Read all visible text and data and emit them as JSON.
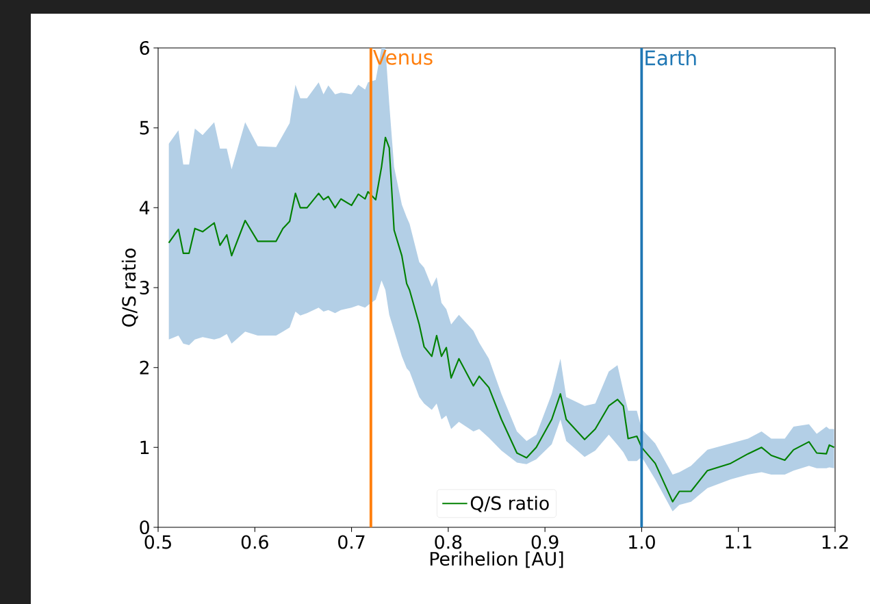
{
  "chart_data": {
    "type": "line",
    "xlabel": "Perihelion [AU]",
    "ylabel": "Q/S ratio",
    "xlim": [
      0.5,
      1.2
    ],
    "ylim": [
      0,
      6
    ],
    "xticks": [
      0.5,
      0.6,
      0.7,
      0.8,
      0.9,
      {
        "value": 1.0,
        "label": "1.0"
      },
      1.1,
      1.2
    ],
    "yticks": [
      0,
      1,
      2,
      3,
      4,
      5,
      6
    ],
    "legend": "bottom",
    "marker": "none",
    "line_style": "solid",
    "x": [
      0.511,
      0.521,
      0.526,
      0.532,
      0.538,
      0.546,
      0.558,
      0.564,
      0.571,
      0.576,
      0.59,
      0.603,
      0.622,
      0.629,
      0.636,
      0.642,
      0.647,
      0.654,
      0.666,
      0.671,
      0.676,
      0.683,
      0.689,
      0.7,
      0.707,
      0.714,
      0.717,
      0.725,
      0.731,
      0.735,
      0.739,
      0.744,
      0.752,
      0.757,
      0.76,
      0.77,
      0.775,
      0.783,
      0.788,
      0.793,
      0.798,
      0.803,
      0.811,
      0.826,
      0.832,
      0.842,
      0.855,
      0.871,
      0.881,
      0.891,
      0.907,
      0.916,
      0.922,
      0.941,
      0.952,
      0.966,
      0.975,
      0.981,
      0.986,
      0.995,
      1.0,
      1.014,
      1.032,
      1.039,
      1.051,
      1.068,
      1.092,
      1.11,
      1.124,
      1.134,
      1.148,
      1.157,
      1.173,
      1.181,
      1.191,
      1.194,
      1.199
    ],
    "series": [
      {
        "name": "Q/S ratio",
        "color": "#008000",
        "values": [
          3.56,
          3.73,
          3.43,
          3.43,
          3.74,
          3.7,
          3.81,
          3.53,
          3.66,
          3.4,
          3.84,
          3.58,
          3.58,
          3.74,
          3.83,
          4.18,
          4.0,
          4.0,
          4.18,
          4.1,
          4.14,
          4.0,
          4.11,
          4.03,
          4.17,
          4.11,
          4.2,
          4.1,
          4.51,
          4.88,
          4.75,
          3.72,
          3.4,
          3.05,
          2.97,
          2.54,
          2.26,
          2.14,
          2.4,
          2.14,
          2.25,
          1.87,
          2.11,
          1.77,
          1.89,
          1.75,
          1.35,
          0.93,
          0.87,
          1.0,
          1.35,
          1.67,
          1.35,
          1.1,
          1.23,
          1.52,
          1.6,
          1.52,
          1.11,
          1.14,
          1.0,
          0.8,
          0.32,
          0.45,
          0.45,
          0.71,
          0.8,
          0.92,
          1.0,
          0.9,
          0.84,
          0.97,
          1.07,
          0.93,
          0.92,
          1.03,
          1.0
        ],
        "lower": [
          2.35,
          2.4,
          2.3,
          2.28,
          2.35,
          2.38,
          2.35,
          2.37,
          2.42,
          2.3,
          2.45,
          2.4,
          2.4,
          2.45,
          2.5,
          2.7,
          2.65,
          2.68,
          2.75,
          2.7,
          2.72,
          2.68,
          2.72,
          2.75,
          2.78,
          2.75,
          2.78,
          2.85,
          3.09,
          2.97,
          2.66,
          2.46,
          2.14,
          1.99,
          1.95,
          1.63,
          1.55,
          1.47,
          1.55,
          1.35,
          1.4,
          1.23,
          1.32,
          1.2,
          1.23,
          1.12,
          0.96,
          0.81,
          0.79,
          0.85,
          1.04,
          1.35,
          1.08,
          0.88,
          0.96,
          1.16,
          1.03,
          0.94,
          0.83,
          0.83,
          0.88,
          0.6,
          0.2,
          0.28,
          0.32,
          0.49,
          0.6,
          0.66,
          0.69,
          0.66,
          0.66,
          0.71,
          0.77,
          0.74,
          0.74,
          0.75,
          0.74
        ],
        "upper": [
          4.8,
          4.97,
          4.54,
          4.54,
          4.99,
          4.91,
          5.07,
          4.74,
          4.74,
          4.48,
          5.07,
          4.77,
          4.76,
          4.91,
          5.06,
          5.54,
          5.37,
          5.37,
          5.57,
          5.42,
          5.53,
          5.42,
          5.44,
          5.42,
          5.54,
          5.48,
          5.57,
          5.6,
          6.0,
          6.0,
          5.3,
          4.51,
          4.04,
          3.88,
          3.8,
          3.32,
          3.25,
          3.01,
          3.13,
          2.81,
          2.73,
          2.54,
          2.66,
          2.46,
          2.31,
          2.11,
          1.67,
          1.2,
          1.08,
          1.16,
          1.67,
          2.11,
          1.63,
          1.52,
          1.55,
          1.95,
          2.03,
          1.71,
          1.46,
          1.46,
          1.23,
          1.05,
          0.66,
          0.69,
          0.77,
          0.97,
          1.05,
          1.11,
          1.2,
          1.11,
          1.11,
          1.26,
          1.29,
          1.17,
          1.26,
          1.23,
          1.23
        ]
      }
    ],
    "ref_lines": [
      {
        "axis": "x",
        "value": 0.72,
        "label": "Venus",
        "color": "#ff7f0e"
      },
      {
        "axis": "x",
        "value": 1.0,
        "label": "Earth",
        "color": "#1f77b4"
      }
    ]
  }
}
